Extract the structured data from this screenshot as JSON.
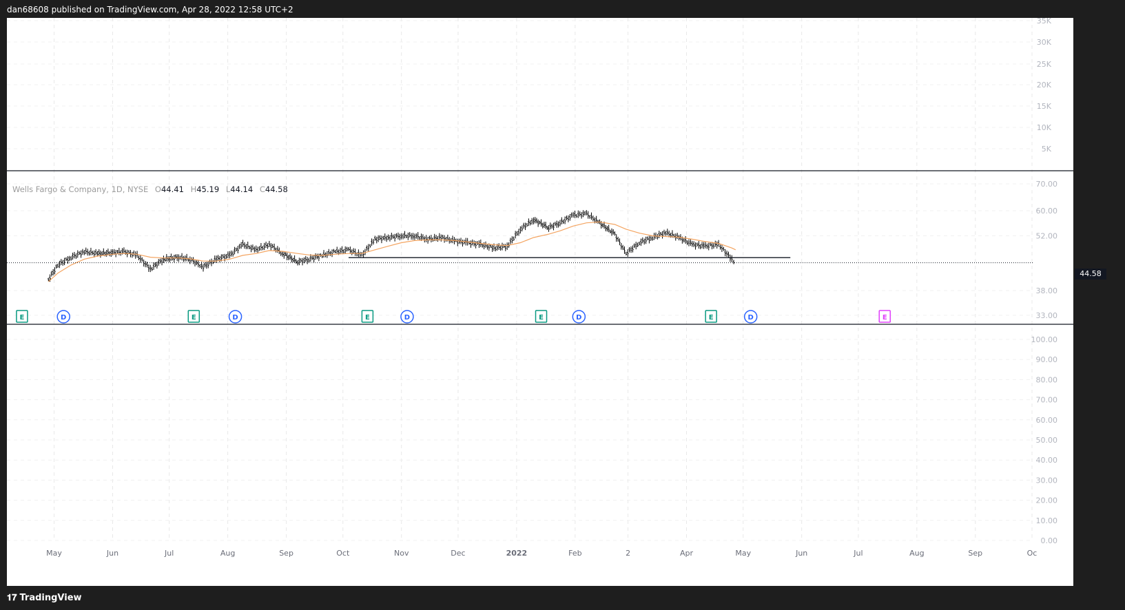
{
  "header": {
    "publisher_text": "dan68608 published on TradingView.com, Apr 28, 2022 12:58 UTC+2"
  },
  "legend": {
    "symbol": "Wells Fargo & Company, 1D, NYSE",
    "open_label": "O",
    "open": "44.41",
    "high_label": "H",
    "high": "45.19",
    "low_label": "L",
    "low": "44.14",
    "close_label": "C",
    "close": "44.58"
  },
  "last_price": "44.58",
  "footer": {
    "brand": "TradingView",
    "logo_glyph": "𝟏𝟕"
  },
  "colors": {
    "candles": "#000000",
    "ma_line": "#f4a460",
    "support_line": "#131722",
    "earnings_past": "#089981",
    "earnings_future": "#e040fb",
    "dividend": "#2962ff"
  },
  "chart_data": [
    {
      "type": "line",
      "pane": "volume",
      "y_ticks": [
        "35K",
        "30K",
        "25K",
        "20K",
        "15K",
        "10K",
        "5K"
      ],
      "series": []
    },
    {
      "type": "line",
      "pane": "price",
      "title": "Wells Fargo & Company, 1D, NYSE",
      "x_ticks": [
        "May",
        "Jun",
        "Jul",
        "Aug",
        "Sep",
        "Oct",
        "Nov",
        "Dec",
        "2022",
        "Feb",
        "2",
        "Apr",
        "May",
        "Jun",
        "Jul",
        "Aug",
        "Sep",
        "Oc"
      ],
      "y_ticks": [
        "70.00",
        "60.00",
        "52.00",
        "44.58",
        "38.00",
        "33.00"
      ],
      "log_scale": true,
      "ylim": [
        33,
        70
      ],
      "grid": true,
      "x": [
        "2021-04-28",
        "2021-05-03",
        "2021-05-10",
        "2021-05-17",
        "2021-05-24",
        "2021-06-01",
        "2021-06-07",
        "2021-06-14",
        "2021-06-21",
        "2021-06-28",
        "2021-07-06",
        "2021-07-12",
        "2021-07-19",
        "2021-07-26",
        "2021-08-02",
        "2021-08-09",
        "2021-08-16",
        "2021-08-23",
        "2021-08-30",
        "2021-09-07",
        "2021-09-13",
        "2021-09-20",
        "2021-09-27",
        "2021-10-04",
        "2021-10-11",
        "2021-10-18",
        "2021-10-25",
        "2021-11-01",
        "2021-11-08",
        "2021-11-15",
        "2021-11-22",
        "2021-11-29",
        "2021-12-06",
        "2021-12-13",
        "2021-12-20",
        "2021-12-27",
        "2022-01-03",
        "2022-01-10",
        "2022-01-18",
        "2022-01-24",
        "2022-01-31",
        "2022-02-07",
        "2022-02-14",
        "2022-02-22",
        "2022-02-28",
        "2022-03-07",
        "2022-03-14",
        "2022-03-21",
        "2022-03-28",
        "2022-04-04",
        "2022-04-11",
        "2022-04-18",
        "2022-04-25",
        "2022-04-27"
      ],
      "series": [
        {
          "name": "",
          "values": [
            40.5,
            44.0,
            46.0,
            47.5,
            47.0,
            47.2,
            47.5,
            46.5,
            43.0,
            45.5,
            46.0,
            45.5,
            43.5,
            45.5,
            46.5,
            49.5,
            48.0,
            49.5,
            47.0,
            44.8,
            45.5,
            46.5,
            47.5,
            48.0,
            46.5,
            51.0,
            51.5,
            52.0,
            52.0,
            51.0,
            51.5,
            50.5,
            50.0,
            49.5,
            48.5,
            49.0,
            54.0,
            57.0,
            54.5,
            56.0,
            58.5,
            59.0,
            56.0,
            52.5,
            47.0,
            50.0,
            51.5,
            53.0,
            51.5,
            49.5,
            49.0,
            49.5,
            45.5,
            44.6
          ]
        },
        {
          "name": "",
          "values": [
            40.0,
            42.0,
            44.0,
            45.5,
            46.3,
            46.8,
            47.0,
            46.8,
            46.0,
            45.8,
            45.8,
            45.6,
            45.0,
            45.0,
            45.5,
            46.5,
            47.0,
            47.8,
            47.6,
            47.0,
            46.6,
            46.5,
            46.8,
            47.0,
            47.0,
            48.0,
            49.0,
            50.0,
            50.6,
            50.8,
            50.8,
            50.6,
            50.2,
            49.8,
            49.4,
            49.2,
            50.0,
            51.5,
            52.5,
            53.5,
            55.0,
            56.0,
            56.3,
            55.5,
            54.0,
            52.8,
            52.0,
            51.8,
            51.6,
            51.0,
            50.3,
            49.8,
            48.5,
            48.0
          ]
        }
      ],
      "horizontal_levels": [
        45.9
      ],
      "event_markers": [
        {
          "type": "earnings",
          "label": "E",
          "date": "2021-04-14"
        },
        {
          "type": "dividend",
          "label": "D",
          "date": "2021-05-06"
        },
        {
          "type": "earnings",
          "label": "E",
          "date": "2021-07-14"
        },
        {
          "type": "dividend",
          "label": "D",
          "date": "2021-08-05"
        },
        {
          "type": "earnings",
          "label": "E",
          "date": "2021-10-14"
        },
        {
          "type": "dividend",
          "label": "D",
          "date": "2021-11-04"
        },
        {
          "type": "earnings",
          "label": "E",
          "date": "2022-01-14"
        },
        {
          "type": "dividend",
          "label": "D",
          "date": "2022-02-03"
        },
        {
          "type": "earnings",
          "label": "E",
          "date": "2022-04-14"
        },
        {
          "type": "dividend",
          "label": "D",
          "date": "2022-05-05"
        },
        {
          "type": "earnings_future",
          "label": "E",
          "date": "2022-07-15"
        }
      ]
    },
    {
      "type": "line",
      "pane": "indicator",
      "y_ticks": [
        "100.00",
        "90.00",
        "80.00",
        "70.00",
        "60.00",
        "50.00",
        "40.00",
        "30.00",
        "20.00",
        "10.00",
        "0.00"
      ],
      "series": []
    }
  ]
}
